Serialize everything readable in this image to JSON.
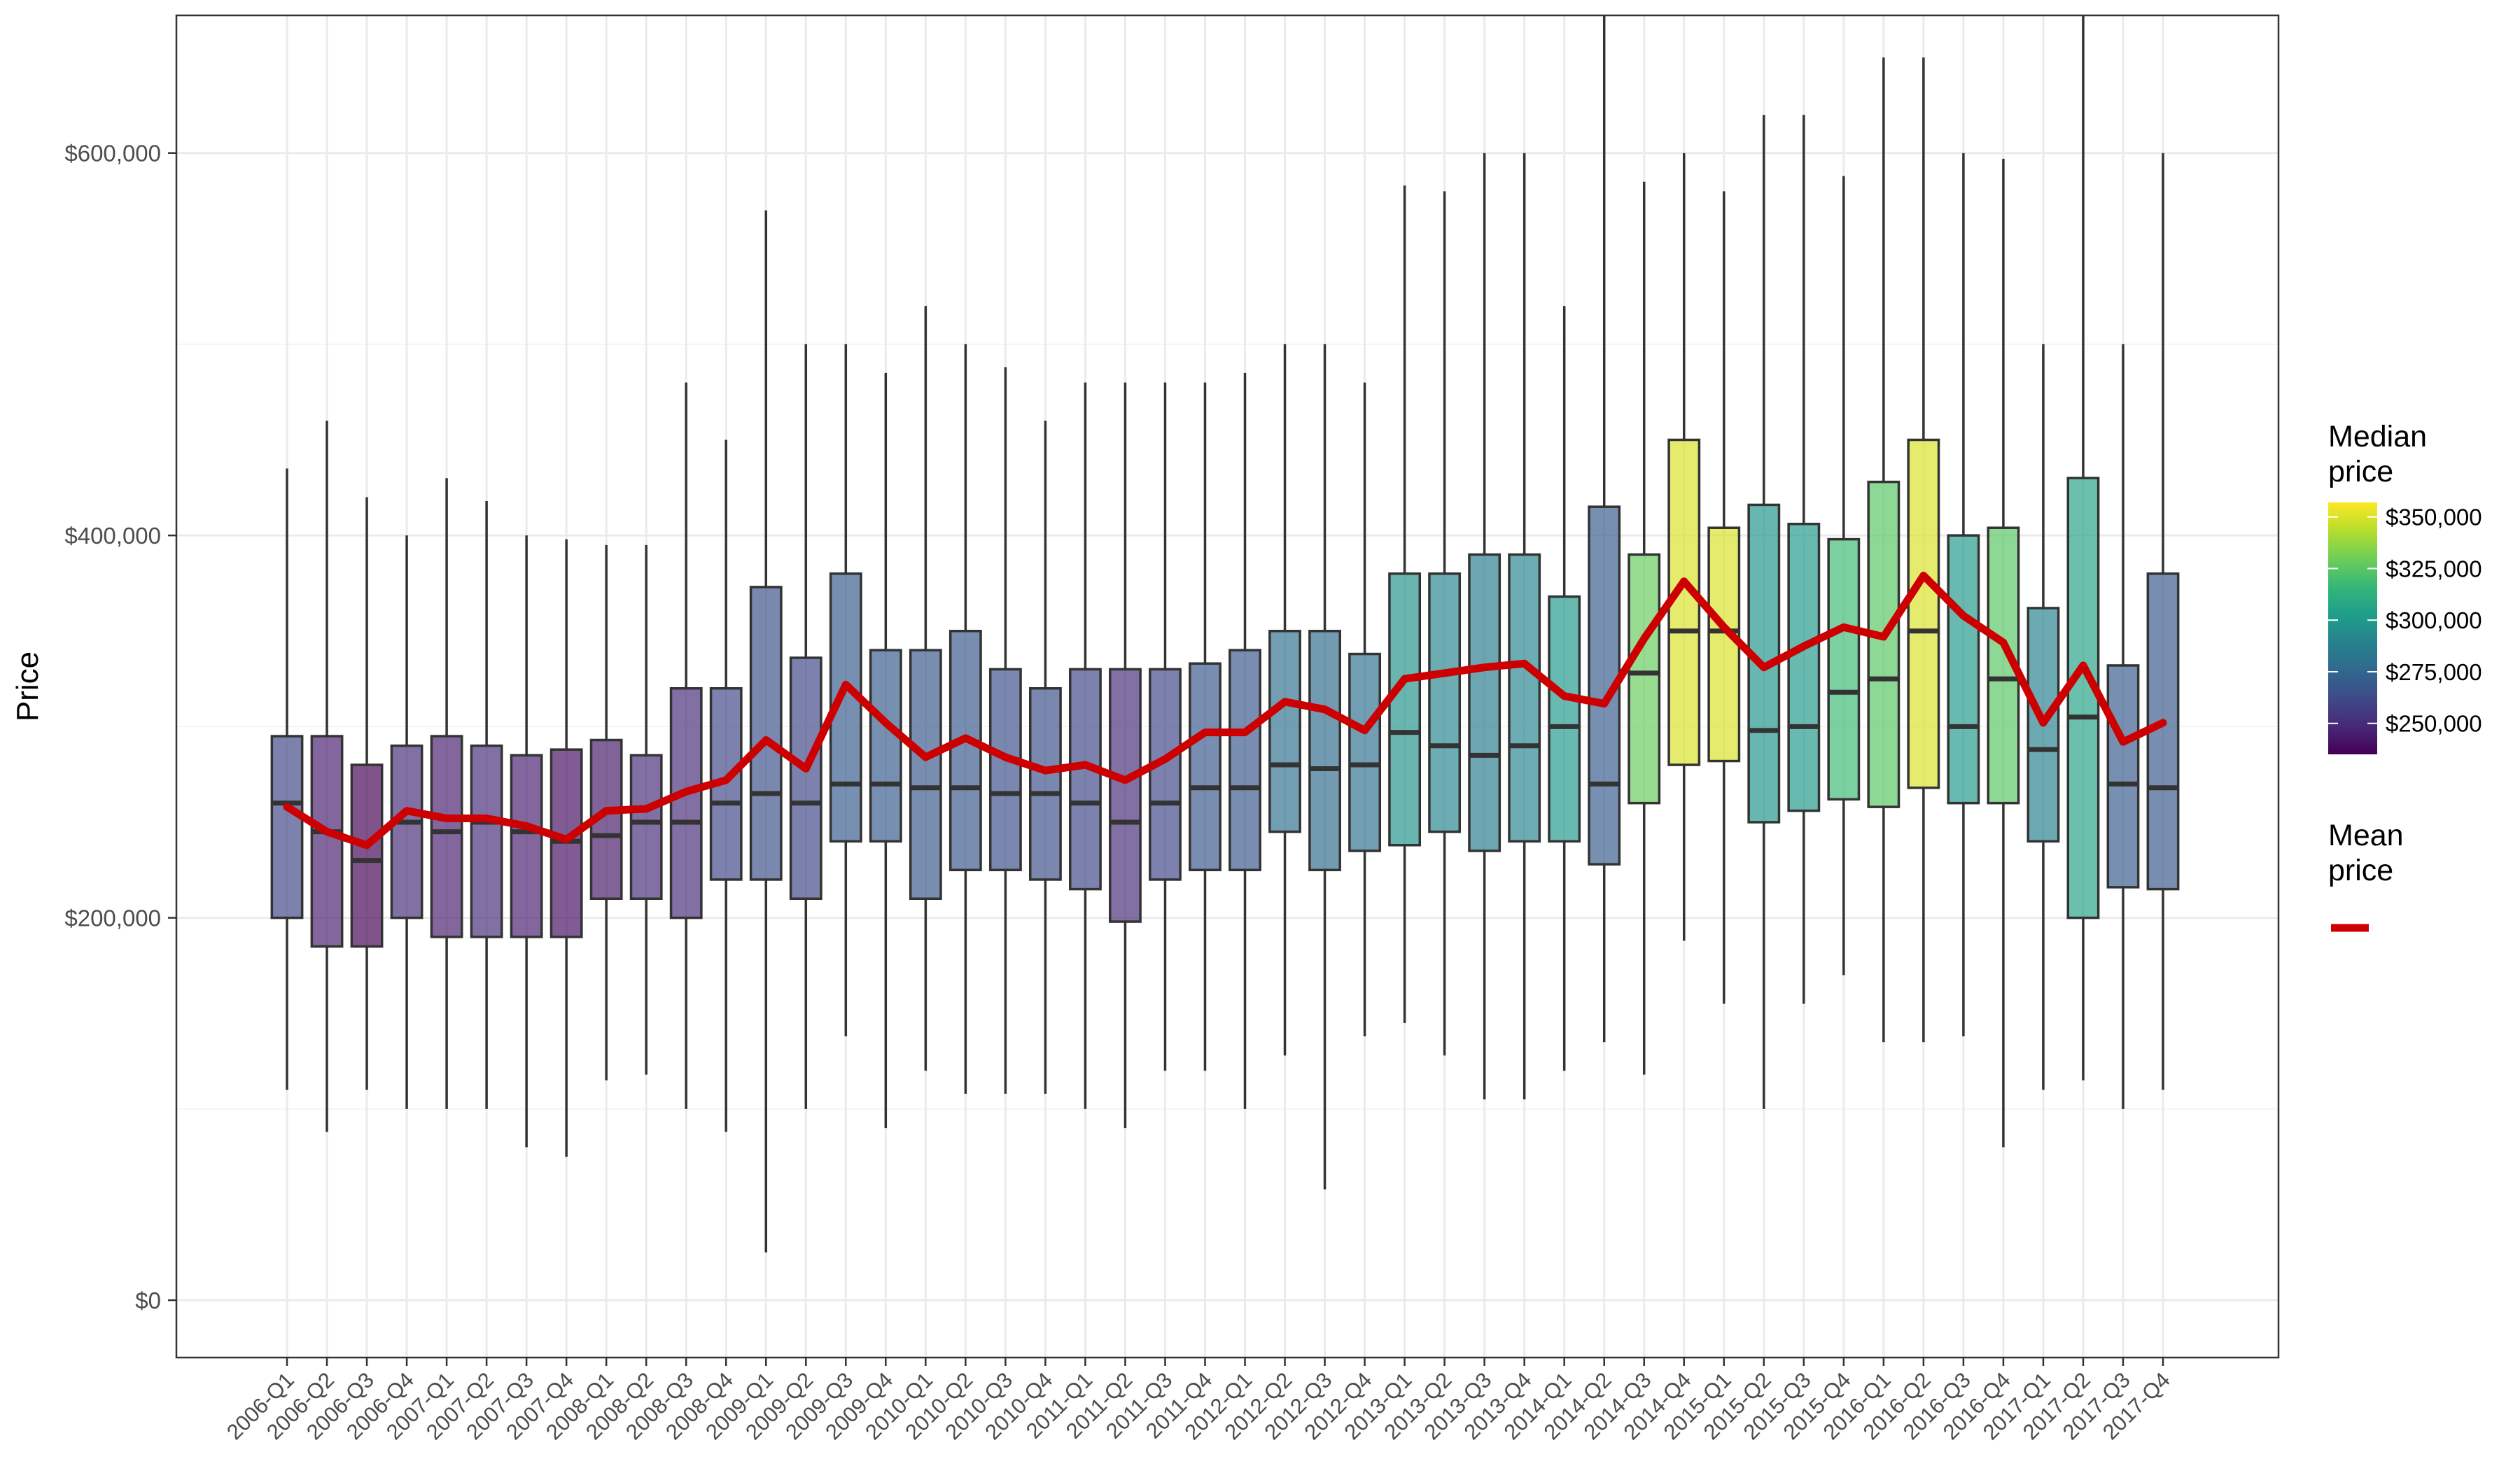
{
  "chart_data": {
    "type": "box",
    "title": "",
    "xlabel": "",
    "ylabel": "Price",
    "ylim": [
      -30000,
      672000
    ],
    "y_ticks": [
      {
        "value": 0,
        "label": "$0"
      },
      {
        "value": 200000,
        "label": "$200,000"
      },
      {
        "value": 400000,
        "label": "$400,000"
      },
      {
        "value": 600000,
        "label": "$600,000"
      }
    ],
    "grid": true,
    "categories": [
      "2006-Q1",
      "2006-Q2",
      "2006-Q3",
      "2006-Q4",
      "2007-Q1",
      "2007-Q2",
      "2007-Q3",
      "2007-Q4",
      "2008-Q1",
      "2008-Q2",
      "2008-Q3",
      "2008-Q4",
      "2009-Q1",
      "2009-Q2",
      "2009-Q3",
      "2009-Q4",
      "2010-Q1",
      "2010-Q2",
      "2010-Q3",
      "2010-Q4",
      "2011-Q1",
      "2011-Q2",
      "2011-Q3",
      "2011-Q4",
      "2012-Q1",
      "2012-Q2",
      "2012-Q3",
      "2012-Q4",
      "2013-Q1",
      "2013-Q2",
      "2013-Q3",
      "2013-Q4",
      "2014-Q1",
      "2014-Q2",
      "2014-Q3",
      "2014-Q4",
      "2015-Q1",
      "2015-Q2",
      "2015-Q3",
      "2015-Q4",
      "2016-Q1",
      "2016-Q2",
      "2016-Q3",
      "2016-Q4",
      "2017-Q1",
      "2017-Q2",
      "2017-Q3",
      "2017-Q4"
    ],
    "boxes": [
      {
        "min": 110000,
        "q1": 200000,
        "median": 260000,
        "q3": 295000,
        "max": 435000
      },
      {
        "min": 88000,
        "q1": 185000,
        "median": 245000,
        "q3": 295000,
        "max": 460000
      },
      {
        "min": 110000,
        "q1": 185000,
        "median": 230000,
        "q3": 280000,
        "max": 420000
      },
      {
        "min": 100000,
        "q1": 200000,
        "median": 250000,
        "q3": 290000,
        "max": 400000
      },
      {
        "min": 100000,
        "q1": 190000,
        "median": 245000,
        "q3": 295000,
        "max": 430000
      },
      {
        "min": 100000,
        "q1": 190000,
        "median": 250000,
        "q3": 290000,
        "max": 418000
      },
      {
        "min": 80000,
        "q1": 190000,
        "median": 245000,
        "q3": 285000,
        "max": 400000
      },
      {
        "min": 75000,
        "q1": 190000,
        "median": 240000,
        "q3": 288000,
        "max": 398000
      },
      {
        "min": 115000,
        "q1": 210000,
        "median": 243000,
        "q3": 293000,
        "max": 395000
      },
      {
        "min": 118000,
        "q1": 210000,
        "median": 250000,
        "q3": 285000,
        "max": 395000
      },
      {
        "min": 100000,
        "q1": 200000,
        "median": 250000,
        "q3": 320000,
        "max": 480000
      },
      {
        "min": 88000,
        "q1": 220000,
        "median": 260000,
        "q3": 320000,
        "max": 450000
      },
      {
        "min": 25000,
        "q1": 220000,
        "median": 265000,
        "q3": 373000,
        "max": 570000
      },
      {
        "min": 100000,
        "q1": 210000,
        "median": 260000,
        "q3": 336000,
        "max": 500000
      },
      {
        "min": 138000,
        "q1": 240000,
        "median": 270000,
        "q3": 380000,
        "max": 500000
      },
      {
        "min": 90000,
        "q1": 240000,
        "median": 270000,
        "q3": 340000,
        "max": 485000
      },
      {
        "min": 120000,
        "q1": 210000,
        "median": 268000,
        "q3": 340000,
        "max": 520000
      },
      {
        "min": 108000,
        "q1": 225000,
        "median": 268000,
        "q3": 350000,
        "max": 500000
      },
      {
        "min": 108000,
        "q1": 225000,
        "median": 265000,
        "q3": 330000,
        "max": 488000
      },
      {
        "min": 108000,
        "q1": 220000,
        "median": 265000,
        "q3": 320000,
        "max": 460000
      },
      {
        "min": 100000,
        "q1": 215000,
        "median": 260000,
        "q3": 330000,
        "max": 480000
      },
      {
        "min": 90000,
        "q1": 198000,
        "median": 250000,
        "q3": 330000,
        "max": 480000
      },
      {
        "min": 120000,
        "q1": 220000,
        "median": 260000,
        "q3": 330000,
        "max": 480000
      },
      {
        "min": 120000,
        "q1": 225000,
        "median": 268000,
        "q3": 333000,
        "max": 480000
      },
      {
        "min": 100000,
        "q1": 225000,
        "median": 268000,
        "q3": 340000,
        "max": 485000
      },
      {
        "min": 128000,
        "q1": 245000,
        "median": 280000,
        "q3": 350000,
        "max": 500000
      },
      {
        "min": 58000,
        "q1": 225000,
        "median": 278000,
        "q3": 350000,
        "max": 500000
      },
      {
        "min": 138000,
        "q1": 235000,
        "median": 280000,
        "q3": 338000,
        "max": 480000
      },
      {
        "min": 145000,
        "q1": 238000,
        "median": 297000,
        "q3": 380000,
        "max": 583000
      },
      {
        "min": 128000,
        "q1": 245000,
        "median": 290000,
        "q3": 380000,
        "max": 580000
      },
      {
        "min": 105000,
        "q1": 235000,
        "median": 285000,
        "q3": 390000,
        "max": 600000
      },
      {
        "min": 105000,
        "q1": 240000,
        "median": 290000,
        "q3": 390000,
        "max": 600000
      },
      {
        "min": 120000,
        "q1": 240000,
        "median": 300000,
        "q3": 368000,
        "max": 520000
      },
      {
        "min": 135000,
        "q1": 228000,
        "median": 270000,
        "q3": 415000,
        "max": 672000
      },
      {
        "min": 118000,
        "q1": 260000,
        "median": 328000,
        "q3": 390000,
        "max": 585000
      },
      {
        "min": 188000,
        "q1": 280000,
        "median": 350000,
        "q3": 450000,
        "max": 600000
      },
      {
        "min": 155000,
        "q1": 282000,
        "median": 350000,
        "q3": 404000,
        "max": 580000
      },
      {
        "min": 100000,
        "q1": 250000,
        "median": 298000,
        "q3": 416000,
        "max": 620000
      },
      {
        "min": 155000,
        "q1": 256000,
        "median": 300000,
        "q3": 406000,
        "max": 620000
      },
      {
        "min": 170000,
        "q1": 262000,
        "median": 318000,
        "q3": 398000,
        "max": 588000
      },
      {
        "min": 135000,
        "q1": 258000,
        "median": 325000,
        "q3": 428000,
        "max": 650000
      },
      {
        "min": 135000,
        "q1": 268000,
        "median": 350000,
        "q3": 450000,
        "max": 650000
      },
      {
        "min": 138000,
        "q1": 260000,
        "median": 300000,
        "q3": 400000,
        "max": 600000
      },
      {
        "min": 80000,
        "q1": 260000,
        "median": 325000,
        "q3": 404000,
        "max": 597000
      },
      {
        "min": 110000,
        "q1": 240000,
        "median": 288000,
        "q3": 362000,
        "max": 500000
      },
      {
        "min": 115000,
        "q1": 200000,
        "median": 305000,
        "q3": 430000,
        "max": 672000
      },
      {
        "min": 100000,
        "q1": 216000,
        "median": 270000,
        "q3": 332000,
        "max": 500000
      },
      {
        "min": 110000,
        "q1": 215000,
        "median": 268000,
        "q3": 380000,
        "max": 600000
      }
    ],
    "series": [
      {
        "name": "Mean price",
        "color": "#cc0000",
        "values": [
          258000,
          245000,
          238000,
          256000,
          252000,
          252000,
          248000,
          241000,
          256000,
          257000,
          266000,
          272000,
          293000,
          278000,
          322000,
          302000,
          284000,
          294000,
          284000,
          277000,
          280000,
          272000,
          283000,
          297000,
          297000,
          313000,
          309000,
          298000,
          325000,
          328000,
          331000,
          333000,
          316000,
          312000,
          346000,
          376000,
          352000,
          331000,
          342000,
          352000,
          347000,
          379000,
          358000,
          344000,
          302000,
          332000,
          292000,
          302000
        ]
      }
    ],
    "legend": {
      "position": "right",
      "fill_title": "Median\nprice",
      "fill_range": [
        235000,
        357000
      ],
      "fill_breaks": [
        {
          "value": 250000,
          "label": "$250,000"
        },
        {
          "value": 275000,
          "label": "$275,000"
        },
        {
          "value": 300000,
          "label": "$300,000"
        },
        {
          "value": 325000,
          "label": "$325,000"
        },
        {
          "value": 350000,
          "label": "$350,000"
        }
      ],
      "line_title": "Mean\nprice"
    },
    "colors": {
      "palette": "viridis",
      "mean_line": "#cc0000",
      "box_stroke": "#333333",
      "grid": "#ebebeb",
      "panel_border": "#333333"
    }
  }
}
